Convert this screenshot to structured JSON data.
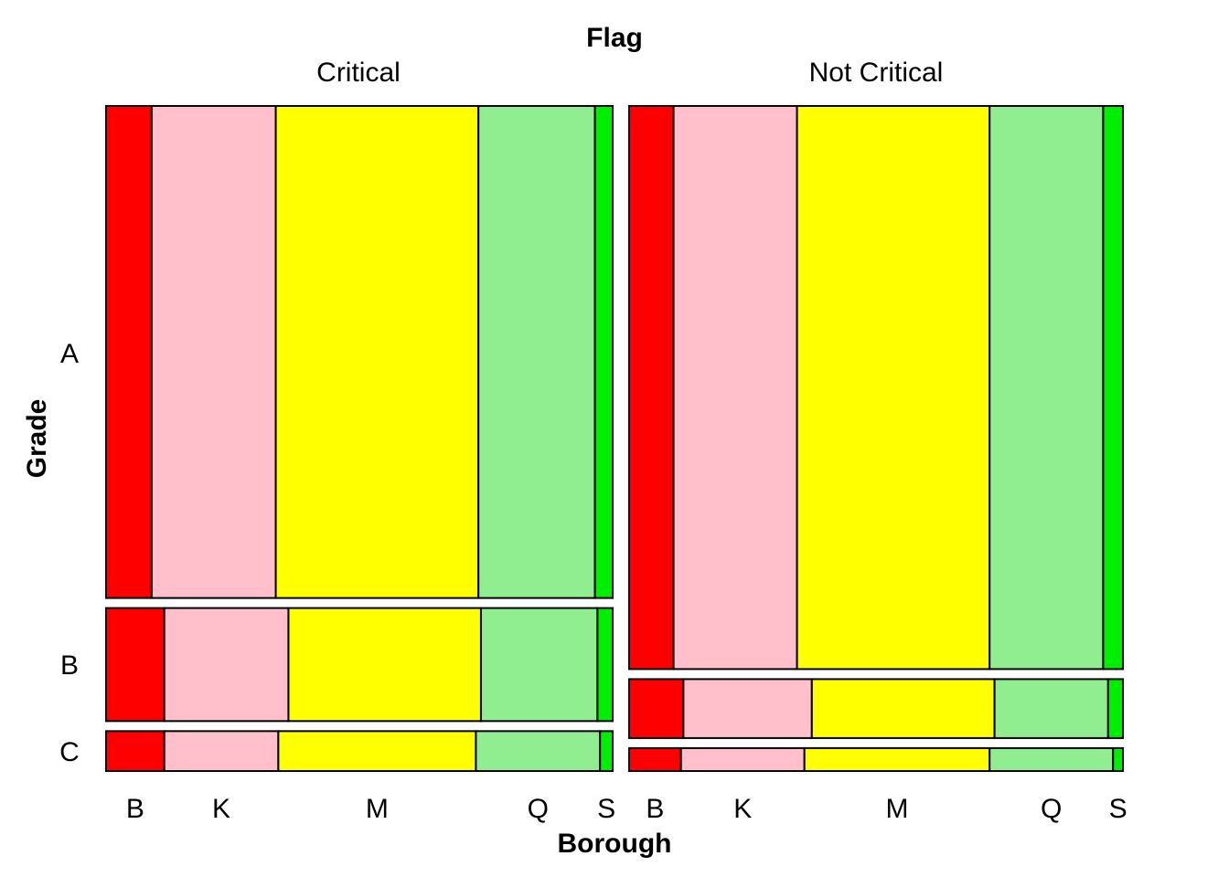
{
  "chart_data": {
    "type": "mosaic",
    "title": "Flag",
    "xlabel": "Borough",
    "ylabel": "Grade",
    "panels": [
      {
        "name": "Critical",
        "grades": [
          {
            "grade": "A",
            "share": 0.74,
            "boroughs": [
              {
                "borough": "B",
                "share": 0.09,
                "color": "#FF0000"
              },
              {
                "borough": "K",
                "share": 0.245,
                "color": "#FFC0CB"
              },
              {
                "borough": "M",
                "share": 0.4,
                "color": "#FFFF00"
              },
              {
                "borough": "Q",
                "share": 0.23,
                "color": "#90EE90"
              },
              {
                "borough": "S",
                "share": 0.035,
                "color": "#00EE00"
              }
            ]
          },
          {
            "grade": "B",
            "share": 0.17,
            "boroughs": [
              {
                "borough": "B",
                "share": 0.115,
                "color": "#FF0000"
              },
              {
                "borough": "K",
                "share": 0.245,
                "color": "#FFC0CB"
              },
              {
                "borough": "M",
                "share": 0.38,
                "color": "#FFFF00"
              },
              {
                "borough": "Q",
                "share": 0.23,
                "color": "#90EE90"
              },
              {
                "borough": "S",
                "share": 0.03,
                "color": "#00EE00"
              }
            ]
          },
          {
            "grade": "C",
            "share": 0.06,
            "boroughs": [
              {
                "borough": "B",
                "share": 0.115,
                "color": "#FF0000"
              },
              {
                "borough": "K",
                "share": 0.225,
                "color": "#FFC0CB"
              },
              {
                "borough": "M",
                "share": 0.39,
                "color": "#FFFF00"
              },
              {
                "borough": "Q",
                "share": 0.245,
                "color": "#90EE90"
              },
              {
                "borough": "S",
                "share": 0.025,
                "color": "#00EE00"
              }
            ]
          }
        ]
      },
      {
        "name": "Not Critical",
        "grades": [
          {
            "grade": "A",
            "share": 0.86,
            "boroughs": [
              {
                "borough": "B",
                "share": 0.09,
                "color": "#FF0000"
              },
              {
                "borough": "K",
                "share": 0.25,
                "color": "#FFC0CB"
              },
              {
                "borough": "M",
                "share": 0.39,
                "color": "#FFFF00"
              },
              {
                "borough": "Q",
                "share": 0.23,
                "color": "#90EE90"
              },
              {
                "borough": "S",
                "share": 0.04,
                "color": "#00EE00"
              }
            ]
          },
          {
            "grade": "B",
            "share": 0.09,
            "boroughs": [
              {
                "borough": "B",
                "share": 0.11,
                "color": "#FF0000"
              },
              {
                "borough": "K",
                "share": 0.26,
                "color": "#FFC0CB"
              },
              {
                "borough": "M",
                "share": 0.37,
                "color": "#FFFF00"
              },
              {
                "borough": "Q",
                "share": 0.23,
                "color": "#90EE90"
              },
              {
                "borough": "S",
                "share": 0.03,
                "color": "#00EE00"
              }
            ]
          },
          {
            "grade": "C",
            "share": 0.035,
            "boroughs": [
              {
                "borough": "B",
                "share": 0.105,
                "color": "#FF0000"
              },
              {
                "borough": "K",
                "share": 0.25,
                "color": "#FFC0CB"
              },
              {
                "borough": "M",
                "share": 0.375,
                "color": "#FFFF00"
              },
              {
                "borough": "Q",
                "share": 0.25,
                "color": "#90EE90"
              },
              {
                "borough": "S",
                "share": 0.02,
                "color": "#00EE00"
              }
            ]
          }
        ]
      }
    ],
    "grade_labels": [
      "A",
      "B",
      "C"
    ],
    "borough_labels": [
      "B",
      "K",
      "M",
      "Q",
      "S"
    ]
  }
}
